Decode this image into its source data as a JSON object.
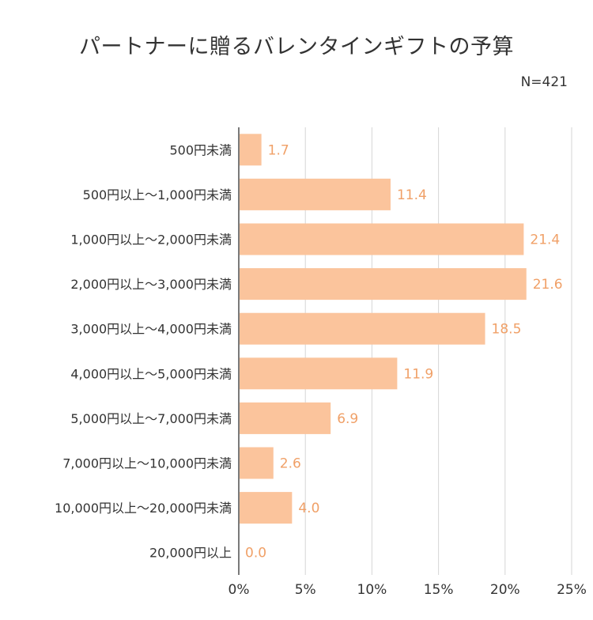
{
  "header": {
    "title": "パートナーに贈るバレンタインギフトの予算",
    "sample_size": "N=421"
  },
  "colors": {
    "bar": "#fbc49c",
    "label": "#f0a067",
    "grid": "#d6d6d6",
    "axis": "#7a7a7a"
  },
  "chart_data": {
    "type": "bar",
    "orientation": "horizontal",
    "title": "パートナーに贈るバレンタインギフトの予算",
    "subtitle": "N=421",
    "categories": [
      "500円未満",
      "500円以上～1,000円未満",
      "1,000円以上～2,000円未満",
      "2,000円以上～3,000円未満",
      "3,000円以上～4,000円未満",
      "4,000円以上～5,000円未満",
      "5,000円以上～7,000円未満",
      "7,000円以上～10,000円未満",
      "10,000円以上～20,000円未満",
      "20,000円以上"
    ],
    "values": [
      1.7,
      11.4,
      21.4,
      21.6,
      18.5,
      11.9,
      6.9,
      2.6,
      4.0,
      0.0
    ],
    "value_labels": [
      "1.7",
      "11.4",
      "21.4",
      "21.6",
      "18.5",
      "11.9",
      "6.9",
      "2.6",
      "4.0",
      "0.0"
    ],
    "xlim": [
      0,
      25
    ],
    "xticks": [
      0,
      5,
      10,
      15,
      20,
      25
    ],
    "xtick_labels": [
      "0%",
      "5%",
      "10%",
      "15%",
      "20%",
      "25%"
    ],
    "grid": true,
    "legend": "none"
  }
}
